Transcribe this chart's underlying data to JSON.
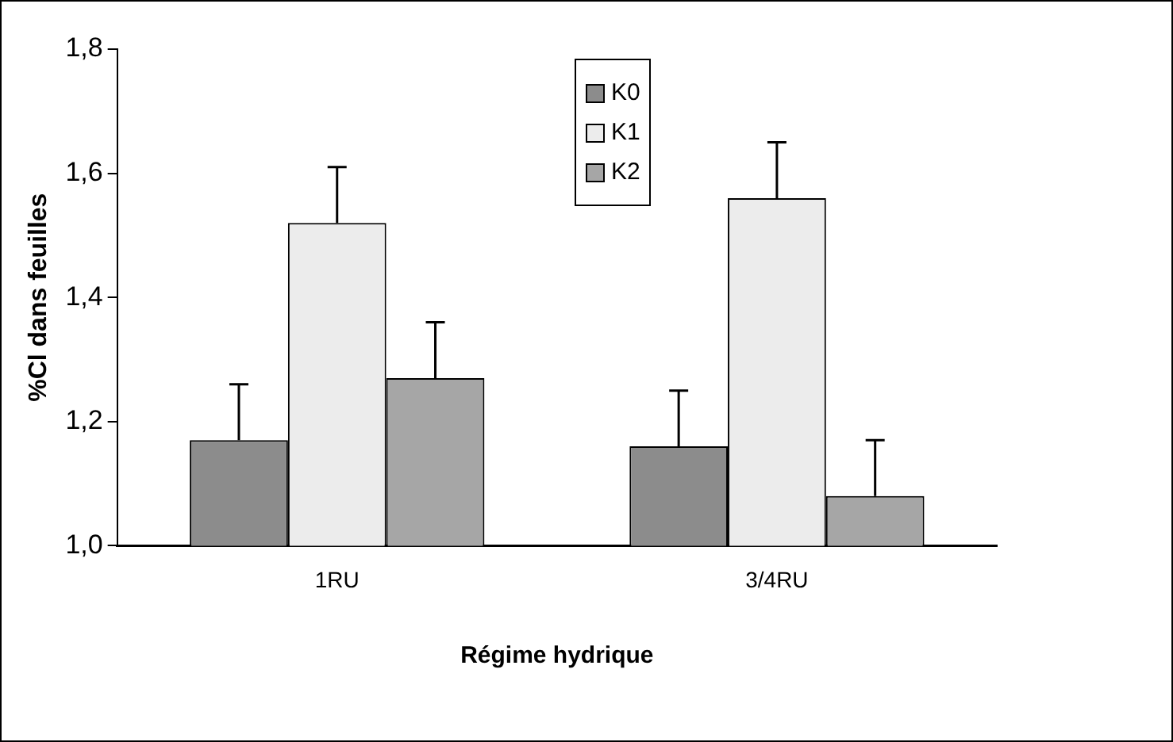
{
  "chart_data": {
    "type": "bar",
    "xlabel": "Régime hydrique",
    "ylabel": "%Cl dans feuilles",
    "categories": [
      "1RU",
      "3/4RU"
    ],
    "series": [
      {
        "name": "K0",
        "color": "#8c8c8c",
        "values": [
          1.17,
          1.16
        ],
        "errors": [
          0.09,
          0.09
        ]
      },
      {
        "name": "K1",
        "color": "#ececec",
        "values": [
          1.52,
          1.56
        ],
        "errors": [
          0.09,
          0.09
        ]
      },
      {
        "name": "K2",
        "color": "#a6a6a6",
        "values": [
          1.27,
          1.08
        ],
        "errors": [
          0.09,
          0.09
        ]
      }
    ],
    "ylim": [
      1,
      1.8
    ],
    "yticks": [
      {
        "value": 1,
        "label": "1,0"
      },
      {
        "value": 1.2,
        "label": "1,2"
      },
      {
        "value": 1.4,
        "label": "1,4"
      },
      {
        "value": 1.6,
        "label": "1,6"
      },
      {
        "value": 1.8,
        "label": "1,8"
      }
    ],
    "grid": false,
    "legend": "top"
  }
}
